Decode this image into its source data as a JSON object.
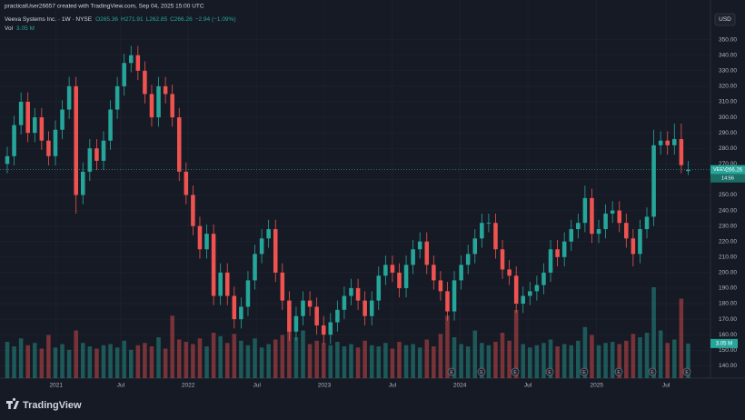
{
  "chart_data": {
    "type": "candlestick",
    "credit": "practicalUser26657 created with TradingView.com, Sep 04, 2025 15:00 UTC",
    "title": "Veeva Systems Inc. · 1W · NYSE",
    "legend_labels": [
      "O265.36",
      "H271.91",
      "L262.85",
      "C266.26",
      "−2.94 (−1.09%)"
    ],
    "volume_label": "Vol",
    "volume_value_label": "3.05 M",
    "currency": "USD",
    "symbol": "VEEV",
    "countdown": "14:56",
    "earnings_marker": "E",
    "brand": "TradingView",
    "up_color": "#26a69a",
    "down_color": "#ef5350",
    "grid": true,
    "open": [
      270,
      275,
      295,
      310,
      290,
      300,
      285,
      275,
      292,
      305,
      320,
      250,
      265,
      280,
      272,
      285,
      305,
      320,
      335,
      340,
      330,
      315,
      300,
      320,
      315,
      300,
      265,
      250,
      230,
      215,
      225,
      185,
      200,
      185,
      170,
      178,
      195,
      212,
      222,
      228,
      200,
      182,
      162,
      172,
      182,
      178,
      166,
      160,
      168,
      176,
      185,
      190,
      182,
      172,
      182,
      198,
      205,
      200,
      190,
      205,
      215,
      220,
      205,
      195,
      188,
      175,
      195,
      205,
      212,
      222,
      232,
      232,
      215,
      202,
      198,
      180,
      185,
      188,
      192,
      200,
      215,
      210,
      220,
      228,
      232,
      248,
      225,
      228,
      238,
      240,
      232,
      222,
      212,
      228,
      236,
      282,
      285,
      282,
      286,
      265.36
    ],
    "high": [
      281,
      301,
      316,
      316,
      306,
      306,
      291,
      298,
      311,
      326,
      326,
      271,
      286,
      286,
      291,
      311,
      326,
      341,
      346,
      346,
      336,
      321,
      326,
      326,
      321,
      306,
      271,
      256,
      236,
      231,
      231,
      206,
      206,
      191,
      184,
      201,
      218,
      228,
      234,
      234,
      206,
      188,
      178,
      188,
      188,
      184,
      172,
      174,
      182,
      191,
      196,
      196,
      188,
      188,
      204,
      211,
      211,
      206,
      211,
      221,
      226,
      226,
      211,
      201,
      194,
      201,
      211,
      218,
      228,
      238,
      238,
      238,
      221,
      208,
      204,
      191,
      194,
      198,
      206,
      221,
      221,
      226,
      234,
      238,
      256,
      254,
      234,
      244,
      246,
      246,
      238,
      228,
      234,
      242,
      292,
      291,
      291,
      296,
      296,
      271.91
    ],
    "low": [
      264,
      269,
      289,
      284,
      284,
      279,
      269,
      269,
      286,
      299,
      238,
      244,
      259,
      266,
      266,
      279,
      299,
      314,
      329,
      324,
      309,
      294,
      294,
      309,
      294,
      259,
      244,
      224,
      209,
      209,
      179,
      179,
      179,
      164,
      164,
      172,
      189,
      206,
      216,
      194,
      176,
      156,
      156,
      166,
      172,
      160,
      154,
      154,
      162,
      170,
      179,
      176,
      166,
      166,
      176,
      192,
      194,
      184,
      184,
      199,
      209,
      199,
      189,
      182,
      169,
      169,
      189,
      199,
      206,
      216,
      226,
      209,
      196,
      192,
      174,
      174,
      179,
      182,
      186,
      194,
      204,
      204,
      214,
      222,
      226,
      219,
      219,
      222,
      232,
      226,
      216,
      204,
      206,
      222,
      230,
      276,
      276,
      276,
      264,
      262.85
    ],
    "close": [
      275,
      295,
      310,
      290,
      300,
      285,
      275,
      292,
      305,
      320,
      250,
      265,
      280,
      272,
      285,
      305,
      320,
      335,
      340,
      330,
      315,
      300,
      320,
      315,
      300,
      265,
      250,
      230,
      215,
      225,
      185,
      200,
      185,
      170,
      178,
      195,
      212,
      222,
      228,
      200,
      182,
      162,
      172,
      182,
      178,
      166,
      160,
      168,
      176,
      185,
      190,
      182,
      172,
      182,
      198,
      205,
      200,
      190,
      205,
      215,
      220,
      205,
      195,
      188,
      175,
      195,
      205,
      212,
      222,
      232,
      232,
      215,
      202,
      198,
      180,
      185,
      188,
      192,
      200,
      215,
      210,
      220,
      228,
      232,
      248,
      225,
      228,
      238,
      240,
      232,
      222,
      212,
      228,
      236,
      282,
      285,
      282,
      286,
      269.2,
      266.26
    ],
    "volumes": [
      3.2,
      2.8,
      3.5,
      2.9,
      3.1,
      2.6,
      3.8,
      2.7,
      3.0,
      2.5,
      4.2,
      3.1,
      2.8,
      2.6,
      2.9,
      3.0,
      2.7,
      3.3,
      2.5,
      2.9,
      3.1,
      2.8,
      3.6,
      2.6,
      5.5,
      3.4,
      3.2,
      3.0,
      3.5,
      2.8,
      4.0,
      3.7,
      3.1,
      3.9,
      3.3,
      2.9,
      3.5,
      2.7,
      3.0,
      3.4,
      3.8,
      5.0,
      3.6,
      4.2,
      3.0,
      3.3,
      3.1,
      2.9,
      3.2,
      2.8,
      3.0,
      2.7,
      3.3,
      2.9,
      2.8,
      3.1,
      2.6,
      3.2,
      2.9,
      3.0,
      2.7,
      3.4,
      2.8,
      3.9,
      5.5,
      3.6,
      3.0,
      2.8,
      4.2,
      3.1,
      2.9,
      3.2,
      4.0,
      3.3,
      6.0,
      3.0,
      2.7,
      2.9,
      3.1,
      3.4,
      2.8,
      3.0,
      2.9,
      3.3,
      4.5,
      3.8,
      2.9,
      3.1,
      3.2,
      3.0,
      3.3,
      3.9,
      3.6,
      4.0,
      8.0,
      4.2,
      3.1,
      3.4,
      7.0,
      3.05
    ],
    "vlim": [
      0,
      12
    ],
    "ylim": [
      132,
      358
    ],
    "yticks": [
      {
        "value": 140,
        "label": "140.00"
      },
      {
        "value": 150,
        "label": "150.00"
      },
      {
        "value": 160,
        "label": "160.00"
      },
      {
        "value": 170,
        "label": "170.00"
      },
      {
        "value": 180,
        "label": "180.00"
      },
      {
        "value": 190,
        "label": "190.00"
      },
      {
        "value": 200,
        "label": "200.00"
      },
      {
        "value": 210,
        "label": "210.00"
      },
      {
        "value": 220,
        "label": "220.00"
      },
      {
        "value": 230,
        "label": "230.00"
      },
      {
        "value": 240,
        "label": "240.00"
      },
      {
        "value": 250,
        "label": "250.00"
      },
      {
        "value": 260,
        "label": "260.00"
      },
      {
        "value": 270,
        "label": "270.00"
      },
      {
        "value": 280,
        "label": "280.00"
      },
      {
        "value": 290,
        "label": "290.00"
      },
      {
        "value": 300,
        "label": "300.00"
      },
      {
        "value": 310,
        "label": "310.00"
      },
      {
        "value": 320,
        "label": "320.00"
      },
      {
        "value": 330,
        "label": "330.00"
      },
      {
        "value": 340,
        "label": "340.00"
      },
      {
        "value": 350,
        "label": "350.00"
      }
    ],
    "xticks": [
      {
        "value": 7.1,
        "label": "2021"
      },
      {
        "value": 16.5,
        "label": "Jul"
      },
      {
        "value": 26.3,
        "label": "2022"
      },
      {
        "value": 36.3,
        "label": "Jul"
      },
      {
        "value": 46.1,
        "label": "2023"
      },
      {
        "value": 56.0,
        "label": "Jul"
      },
      {
        "value": 65.8,
        "label": "2024"
      },
      {
        "value": 75.7,
        "label": "Jul"
      },
      {
        "value": 85.7,
        "label": "2025"
      },
      {
        "value": 95.8,
        "label": "Jul"
      }
    ]
  }
}
